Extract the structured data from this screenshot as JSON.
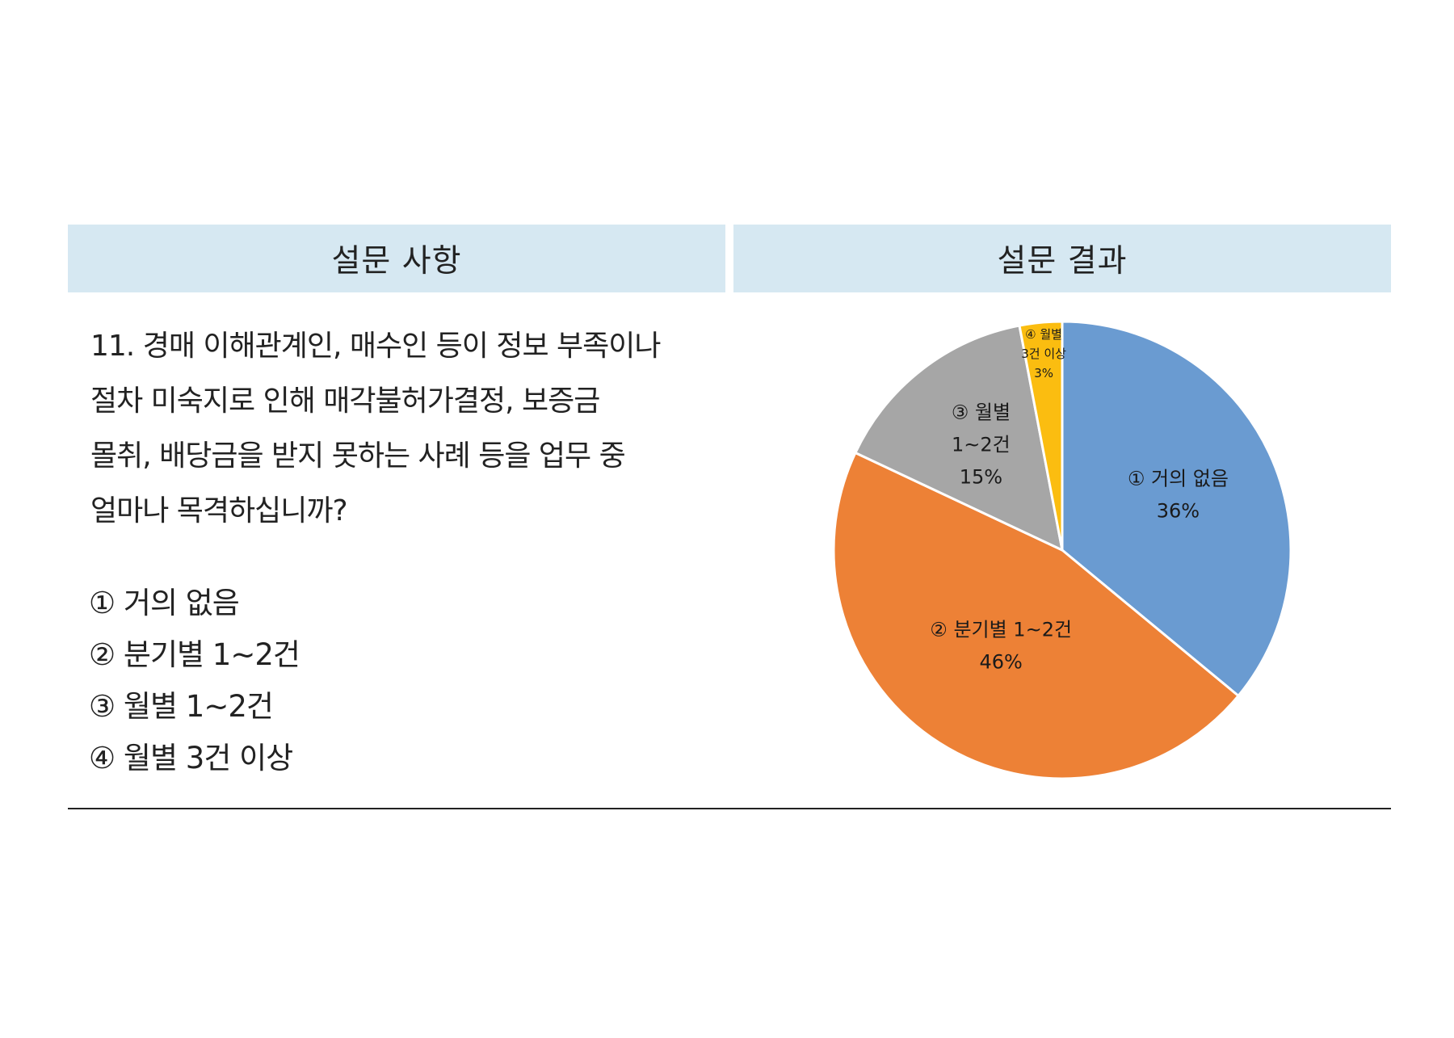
{
  "header": {
    "left": "설문 사항",
    "right": "설문 결과"
  },
  "question": {
    "lines": [
      "11. 경매 이해관계인, 매수인 등이 정보 부족이나",
      "절차 미숙지로 인해 매각불허가결정, 보증금",
      "몰취, 배당금을 받지 못하는 사례 등을 업무 중",
      "얼마나 목격하십니까?"
    ],
    "options": [
      "① 거의 없음",
      "② 분기별 1~2건",
      "③ 월별 1~2건",
      "④ 월별 3건 이상"
    ]
  },
  "chart_data": {
    "type": "pie",
    "slices": [
      {
        "label": "① 거의 없음",
        "value": 36,
        "display": "36%",
        "color": "#6a9bd1"
      },
      {
        "label": "② 분기별 1~2건",
        "value": 46,
        "display": "46%",
        "color": "#ed8136"
      },
      {
        "label": "③ 월별 1~2건",
        "value": 15,
        "display": "15%",
        "color": "#a6a6a6"
      },
      {
        "label": "④ 월별 3건 이상",
        "value": 3,
        "display": "3%",
        "color": "#fbbd10"
      }
    ],
    "slice_label_lines": [
      [
        "① 거의 없음",
        "36%"
      ],
      [
        "② 분기별 1~2건",
        "46%"
      ],
      [
        "③ 월별",
        "1~2건",
        "15%"
      ],
      [
        "④ 월별",
        "3건 이상",
        "3%"
      ]
    ],
    "start": "12 o'clock",
    "direction": "clockwise"
  }
}
